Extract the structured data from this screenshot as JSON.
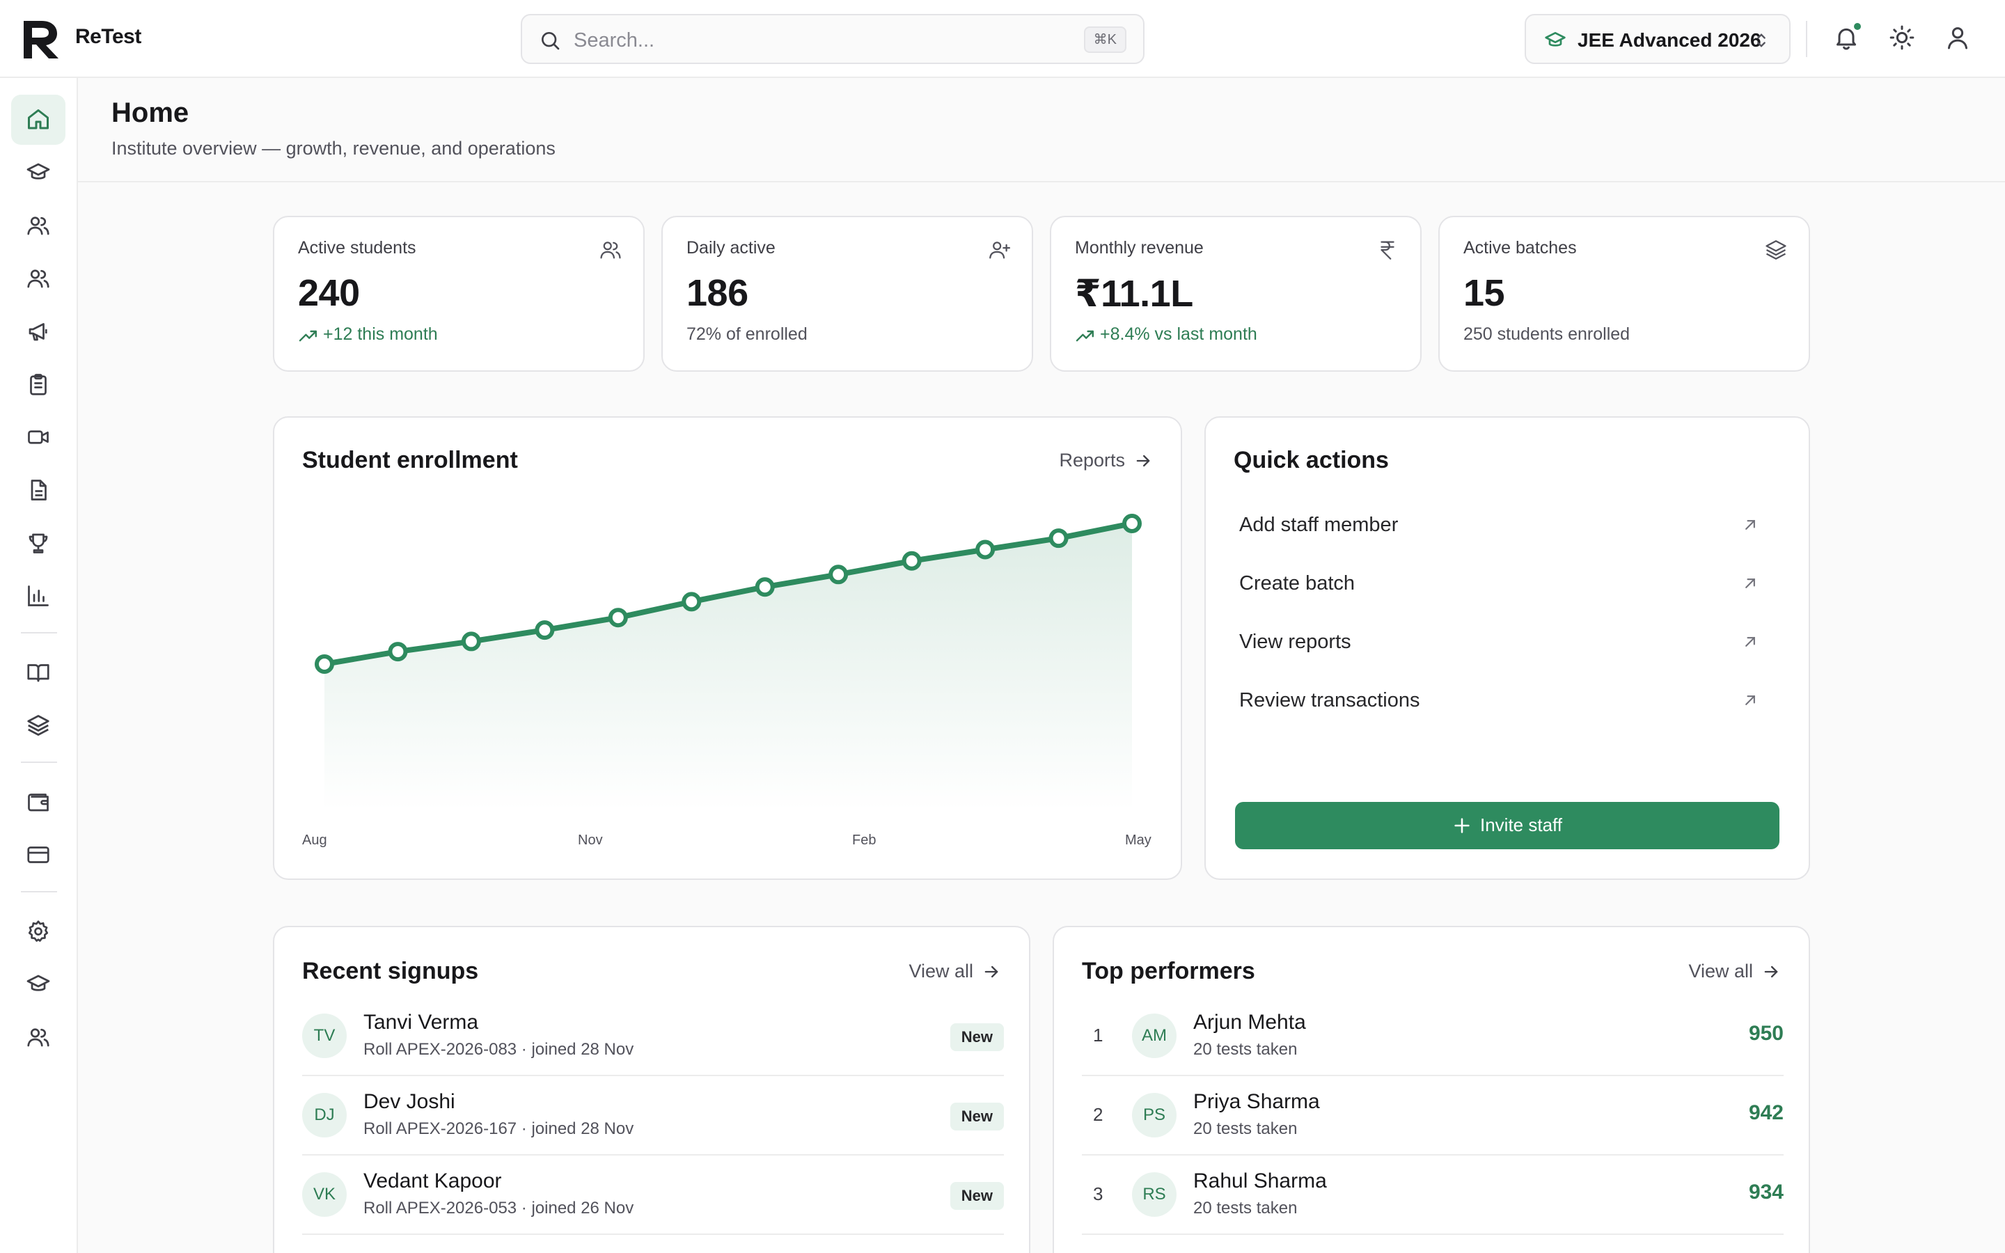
{
  "app": {
    "name": "ReTest"
  },
  "search": {
    "placeholder": "Search...",
    "shortcut": "⌘K"
  },
  "exam_selector": {
    "value": "JEE Advanced 2026"
  },
  "page": {
    "title": "Home",
    "subtitle": "Institute overview — growth, revenue, and operations"
  },
  "stats": [
    {
      "label": "Active students",
      "value": "240",
      "sub": "+12 this month",
      "icon": "users-icon"
    },
    {
      "label": "Daily active",
      "value": "186",
      "sub": "72% of enrolled",
      "icon": "user-plus-icon"
    },
    {
      "label": "Monthly revenue",
      "value": "₹11.1L",
      "sub": "+8.4% vs last month",
      "icon": "rupee-icon"
    },
    {
      "label": "Active batches",
      "value": "15",
      "sub": "250 students enrolled",
      "icon": "layers-icon"
    }
  ],
  "enrollment": {
    "title": "Student enrollment",
    "link": "Reports"
  },
  "chart_data": {
    "type": "area",
    "x_tick_labels": [
      "Aug",
      "Nov",
      "Feb",
      "May"
    ],
    "values": [
      0.0,
      0.055,
      0.1,
      0.15,
      0.205,
      0.275,
      0.34,
      0.395,
      0.455,
      0.505,
      0.555,
      0.62
    ],
    "values_note_free": true,
    "color": "#2e8b5f"
  },
  "quick_actions": {
    "title": "Quick actions",
    "items": [
      "Add staff member",
      "Create batch",
      "View reports",
      "Review transactions"
    ],
    "button": "Invite staff"
  },
  "signups": {
    "title": "Recent signups",
    "link": "View all",
    "rows": [
      {
        "initials": "TV",
        "name": "Tanvi Verma",
        "meta": "Roll APEX-2026-083 · joined 28 Nov",
        "badge": "New"
      },
      {
        "initials": "DJ",
        "name": "Dev Joshi",
        "meta": "Roll APEX-2026-167 · joined 28 Nov",
        "badge": "New"
      },
      {
        "initials": "VK",
        "name": "Vedant Kapoor",
        "meta": "Roll APEX-2026-053 · joined 26 Nov",
        "badge": "New"
      }
    ]
  },
  "performers": {
    "title": "Top performers",
    "link": "View all",
    "rows": [
      {
        "rank": "1",
        "initials": "AM",
        "name": "Arjun Mehta",
        "meta": "20 tests taken",
        "score": "950"
      },
      {
        "rank": "2",
        "initials": "PS",
        "name": "Priya Sharma",
        "meta": "20 tests taken",
        "score": "942"
      },
      {
        "rank": "3",
        "initials": "RS",
        "name": "Rahul Sharma",
        "meta": "20 tests taken",
        "score": "934"
      }
    ]
  },
  "colors": {
    "accent": "#2e8b5f",
    "accent_soft": "#e9f3ee"
  }
}
